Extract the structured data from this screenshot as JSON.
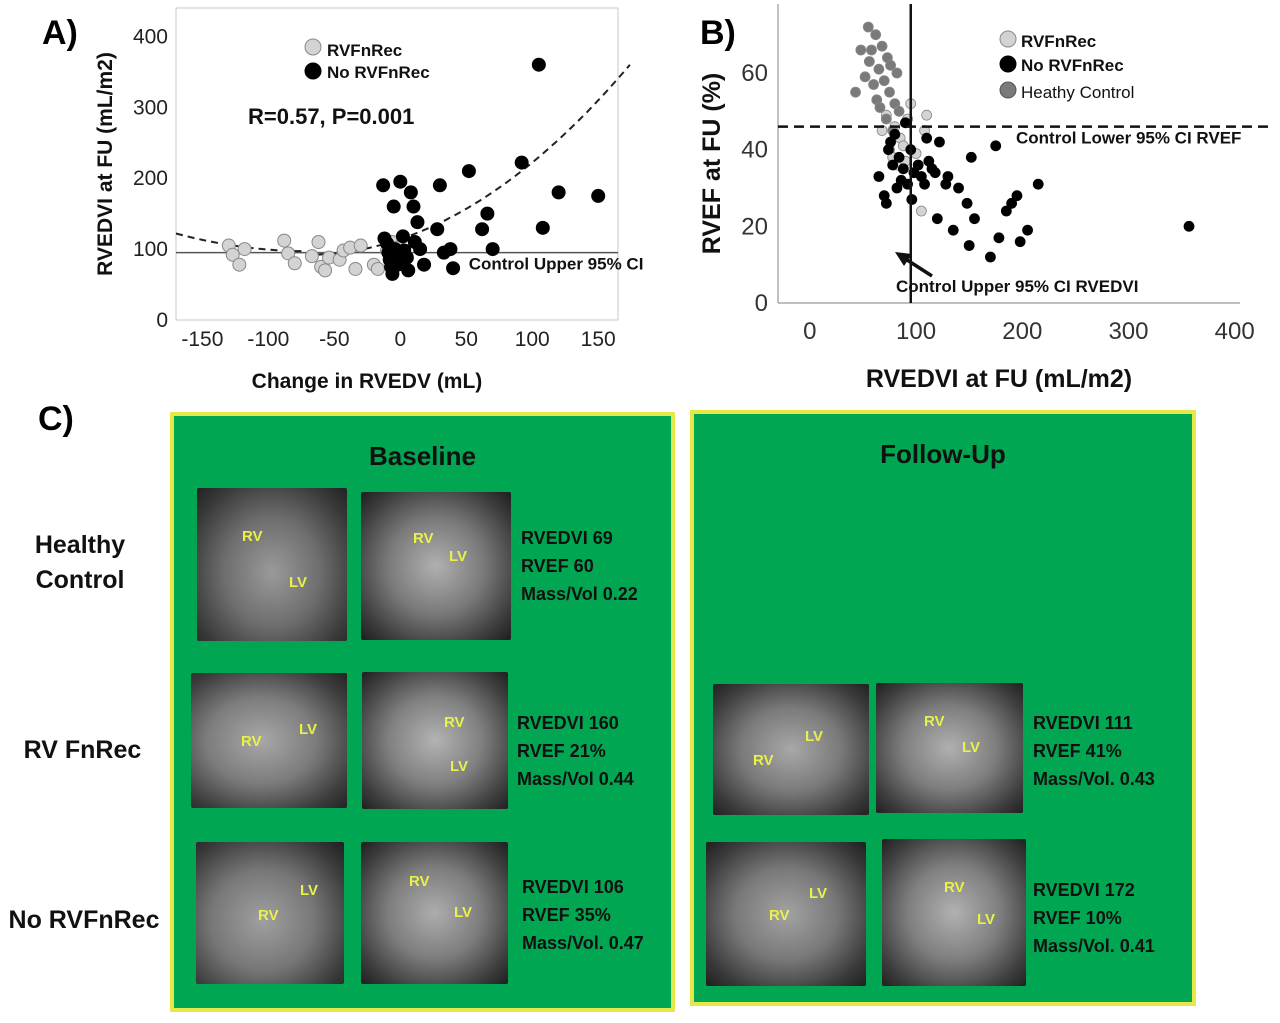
{
  "panels": {
    "a_letter": "A)",
    "b_letter": "B)",
    "c_letter": "C)"
  },
  "chart_data": [
    {
      "type": "scatter",
      "panel": "A)",
      "title": "",
      "xlabel": "Change in RVEDV (mL)",
      "ylabel": "RVEDVI at FU (mL/m2)",
      "xlim": [
        -170,
        165
      ],
      "ylim": [
        0,
        440
      ],
      "xticks": [
        -150,
        -100,
        -50,
        0,
        50,
        100,
        150
      ],
      "yticks": [
        0,
        100,
        200,
        300,
        400
      ],
      "annotation": "R=0.57, P=0.001",
      "reference_line": {
        "label": "Control Upper 95% CI",
        "y": 95
      },
      "legend": {
        "position": "top-center",
        "entries": [
          "RVFnRec",
          "No RVFnRec"
        ]
      },
      "fit": "quadratic (dashed)",
      "series": [
        {
          "name": "RVFnRec",
          "color": "#d3d3d3",
          "points": [
            [
              -130,
              105
            ],
            [
              -127,
              92
            ],
            [
              -122,
              78
            ],
            [
              -118,
              100
            ],
            [
              -88,
              112
            ],
            [
              -85,
              94
            ],
            [
              -80,
              80
            ],
            [
              -67,
              90
            ],
            [
              -62,
              110
            ],
            [
              -60,
              75
            ],
            [
              -57,
              70
            ],
            [
              -54,
              88
            ],
            [
              -46,
              85
            ],
            [
              -43,
              98
            ],
            [
              -38,
              102
            ],
            [
              -34,
              72
            ],
            [
              -30,
              105
            ],
            [
              -20,
              78
            ],
            [
              -17,
              72
            ],
            [
              -10,
              98
            ],
            [
              -6,
              110
            ],
            [
              -2,
              102
            ]
          ]
        },
        {
          "name": "No RVFnRec",
          "color": "#000000",
          "points": [
            [
              -13,
              190
            ],
            [
              -12,
              115
            ],
            [
              -10,
              108
            ],
            [
              -9,
              95
            ],
            [
              -8,
              85
            ],
            [
              -7,
              75
            ],
            [
              -6,
              65
            ],
            [
              -5,
              160
            ],
            [
              -4,
              100
            ],
            [
              -3,
              90
            ],
            [
              -2,
              78
            ],
            [
              0,
              195
            ],
            [
              2,
              118
            ],
            [
              3,
              98
            ],
            [
              5,
              88
            ],
            [
              6,
              70
            ],
            [
              8,
              180
            ],
            [
              10,
              160
            ],
            [
              11,
              110
            ],
            [
              13,
              138
            ],
            [
              15,
              100
            ],
            [
              18,
              78
            ],
            [
              28,
              128
            ],
            [
              30,
              190
            ],
            [
              33,
              95
            ],
            [
              38,
              100
            ],
            [
              40,
              73
            ],
            [
              52,
              210
            ],
            [
              62,
              128
            ],
            [
              66,
              150
            ],
            [
              70,
              100
            ],
            [
              92,
              222
            ],
            [
              105,
              360
            ],
            [
              108,
              130
            ],
            [
              120,
              180
            ],
            [
              150,
              175
            ]
          ]
        }
      ]
    },
    {
      "type": "scatter",
      "panel": "B)",
      "title": "",
      "xlabel": "RVEDVI at FU (mL/m2)",
      "ylabel": "RVEF at FU (%)",
      "xlim": [
        -30,
        405
      ],
      "ylim": [
        0,
        78
      ],
      "xticks": [
        0,
        100,
        200,
        300,
        400
      ],
      "yticks": [
        0,
        20,
        40,
        60
      ],
      "hline": {
        "label": "Control Lower 95% CI RVEF",
        "y": 46
      },
      "vline": {
        "label": "Control Upper 95% CI RVEDVI",
        "x": 95
      },
      "legend": {
        "position": "top-right",
        "entries": [
          "RVFnRec",
          "No RVFnRec",
          "Heathy Control"
        ]
      },
      "series": [
        {
          "name": "RVFnRec",
          "color": "#d3d3d3",
          "points": [
            [
              68,
              45
            ],
            [
              72,
              49
            ],
            [
              75,
              40
            ],
            [
              78,
              38
            ],
            [
              80,
              46
            ],
            [
              82,
              36
            ],
            [
              85,
              43
            ],
            [
              88,
              41
            ],
            [
              90,
              37
            ],
            [
              92,
              48
            ],
            [
              95,
              52
            ],
            [
              100,
              39
            ],
            [
              105,
              24
            ],
            [
              108,
              45
            ],
            [
              110,
              49
            ]
          ]
        },
        {
          "name": "Heathy Control",
          "color": "#7a7a7a",
          "points": [
            [
              43,
              55
            ],
            [
              48,
              66
            ],
            [
              52,
              59
            ],
            [
              55,
              72
            ],
            [
              56,
              63
            ],
            [
              58,
              66
            ],
            [
              60,
              57
            ],
            [
              62,
              70
            ],
            [
              63,
              53
            ],
            [
              65,
              61
            ],
            [
              66,
              51
            ],
            [
              68,
              67
            ],
            [
              70,
              58
            ],
            [
              72,
              48
            ],
            [
              73,
              64
            ],
            [
              75,
              55
            ],
            [
              76,
              62
            ],
            [
              78,
              45
            ],
            [
              80,
              52
            ],
            [
              82,
              60
            ],
            [
              84,
              50
            ]
          ]
        },
        {
          "name": "No RVFnRec",
          "color": "#000000",
          "points": [
            [
              65,
              33
            ],
            [
              70,
              28
            ],
            [
              72,
              26
            ],
            [
              74,
              40
            ],
            [
              76,
              42
            ],
            [
              78,
              36
            ],
            [
              80,
              44
            ],
            [
              82,
              30
            ],
            [
              84,
              38
            ],
            [
              86,
              32
            ],
            [
              88,
              35
            ],
            [
              90,
              47
            ],
            [
              92,
              31
            ],
            [
              95,
              40
            ],
            [
              96,
              27
            ],
            [
              98,
              34
            ],
            [
              102,
              36
            ],
            [
              105,
              33
            ],
            [
              108,
              31
            ],
            [
              110,
              43
            ],
            [
              112,
              37
            ],
            [
              115,
              35
            ],
            [
              118,
              34
            ],
            [
              120,
              22
            ],
            [
              122,
              42
            ],
            [
              128,
              31
            ],
            [
              130,
              33
            ],
            [
              135,
              19
            ],
            [
              140,
              30
            ],
            [
              148,
              26
            ],
            [
              150,
              15
            ],
            [
              152,
              38
            ],
            [
              155,
              22
            ],
            [
              170,
              12
            ],
            [
              175,
              41
            ],
            [
              178,
              17
            ],
            [
              185,
              24
            ],
            [
              190,
              26
            ],
            [
              195,
              28
            ],
            [
              198,
              16
            ],
            [
              205,
              19
            ],
            [
              215,
              31
            ],
            [
              357,
              20
            ]
          ]
        }
      ]
    }
  ],
  "figure_c": {
    "baseline_title": "Baseline",
    "followup_title": "Follow-Up",
    "rows": [
      {
        "label_line1": "Healthy",
        "label_line2": "Control",
        "baseline": [
          "RVEDVI 69",
          "RVEF 60",
          "Mass/Vol 0.22"
        ]
      },
      {
        "label_line1": "RV FnRec",
        "label_line2": "",
        "baseline": [
          "RVEDVI 160",
          "RVEF 21%",
          "Mass/Vol 0.44"
        ],
        "followup": [
          "RVEDVI 111",
          "RVEF 41%",
          "Mass/Vol. 0.43"
        ]
      },
      {
        "label_line1": "No RVFnRec",
        "label_line2": "",
        "baseline": [
          "RVEDVI 106",
          "RVEF 35%",
          "Mass/Vol. 0.47"
        ],
        "followup": [
          "RVEDVI 172",
          "RVEF 10%",
          "Mass/Vol. 0.41"
        ]
      }
    ],
    "mri_labels": {
      "rv": "RV",
      "lv": "LV"
    }
  }
}
